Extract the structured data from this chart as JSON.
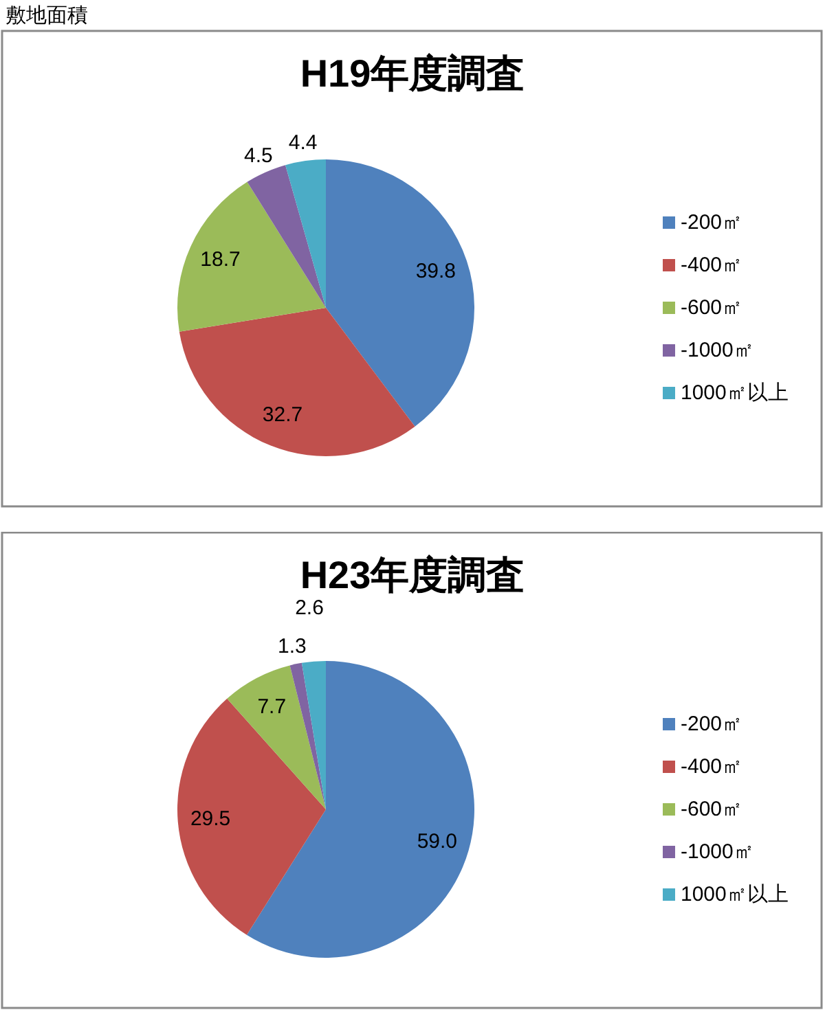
{
  "chart_data": [
    {
      "type": "pie",
      "title": "H19年度調査",
      "annotations": [
        "敷地面積"
      ],
      "categories": [
        "-200㎡",
        "-400㎡",
        "-600㎡",
        "-1000㎡",
        "1000㎡以上"
      ],
      "values": [
        39.8,
        32.7,
        18.7,
        4.5,
        4.4
      ],
      "colors": [
        "#4f81bd",
        "#c0504d",
        "#9bbb59",
        "#8064a2",
        "#4bacc6"
      ],
      "value_labels": [
        "39.8",
        "32.7",
        "18.7",
        "4.5",
        "4.4"
      ],
      "legend": "right"
    },
    {
      "type": "pie",
      "title": "H23年度調査",
      "categories": [
        "-200㎡",
        "-400㎡",
        "-600㎡",
        "-1000㎡",
        "1000㎡以上"
      ],
      "values": [
        59.0,
        29.5,
        7.7,
        1.3,
        2.6
      ],
      "colors": [
        "#4f81bd",
        "#c0504d",
        "#9bbb59",
        "#8064a2",
        "#4bacc6"
      ],
      "value_labels": [
        "59.0",
        "29.5",
        "7.7",
        "1.3",
        "2.6"
      ],
      "legend": "right"
    }
  ]
}
